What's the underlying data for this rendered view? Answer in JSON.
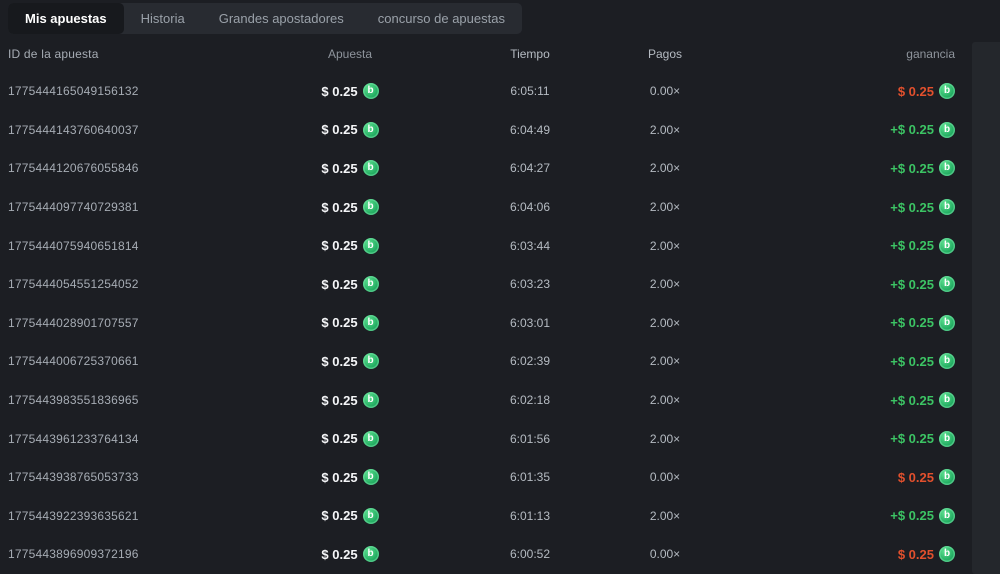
{
  "tabs": {
    "items": [
      {
        "label": "Mis apuestas",
        "active": true
      },
      {
        "label": "Historia",
        "active": false
      },
      {
        "label": "Grandes apostadores",
        "active": false
      },
      {
        "label": "concurso de apuestas",
        "active": false
      }
    ]
  },
  "table": {
    "headers": {
      "id": "ID de la apuesta",
      "bet": "Apuesta",
      "time": "Tiempo",
      "payout": "Pagos",
      "profit": "ganancia"
    },
    "rows": [
      {
        "id": "1775444165049156132",
        "bet": "$ 0.25",
        "time": "6:05:11",
        "payout": "0.00×",
        "profit": "$ 0.25",
        "result": "loss"
      },
      {
        "id": "1775444143760640037",
        "bet": "$ 0.25",
        "time": "6:04:49",
        "payout": "2.00×",
        "profit": "+$ 0.25",
        "result": "win"
      },
      {
        "id": "1775444120676055846",
        "bet": "$ 0.25",
        "time": "6:04:27",
        "payout": "2.00×",
        "profit": "+$ 0.25",
        "result": "win"
      },
      {
        "id": "1775444097740729381",
        "bet": "$ 0.25",
        "time": "6:04:06",
        "payout": "2.00×",
        "profit": "+$ 0.25",
        "result": "win"
      },
      {
        "id": "1775444075940651814",
        "bet": "$ 0.25",
        "time": "6:03:44",
        "payout": "2.00×",
        "profit": "+$ 0.25",
        "result": "win"
      },
      {
        "id": "1775444054551254052",
        "bet": "$ 0.25",
        "time": "6:03:23",
        "payout": "2.00×",
        "profit": "+$ 0.25",
        "result": "win"
      },
      {
        "id": "1775444028901707557",
        "bet": "$ 0.25",
        "time": "6:03:01",
        "payout": "2.00×",
        "profit": "+$ 0.25",
        "result": "win"
      },
      {
        "id": "1775444006725370661",
        "bet": "$ 0.25",
        "time": "6:02:39",
        "payout": "2.00×",
        "profit": "+$ 0.25",
        "result": "win"
      },
      {
        "id": "1775443983551836965",
        "bet": "$ 0.25",
        "time": "6:02:18",
        "payout": "2.00×",
        "profit": "+$ 0.25",
        "result": "win"
      },
      {
        "id": "1775443961233764134",
        "bet": "$ 0.25",
        "time": "6:01:56",
        "payout": "2.00×",
        "profit": "+$ 0.25",
        "result": "win"
      },
      {
        "id": "1775443938765053733",
        "bet": "$ 0.25",
        "time": "6:01:35",
        "payout": "0.00×",
        "profit": "$ 0.25",
        "result": "loss"
      },
      {
        "id": "1775443922393635621",
        "bet": "$ 0.25",
        "time": "6:01:13",
        "payout": "2.00×",
        "profit": "+$ 0.25",
        "result": "win"
      },
      {
        "id": "1775443896909372196",
        "bet": "$ 0.25",
        "time": "6:00:52",
        "payout": "0.00×",
        "profit": "$ 0.25",
        "result": "loss"
      }
    ]
  },
  "icons": {
    "coin_glyph": "b"
  },
  "colors": {
    "win": "#3cc464",
    "loss": "#e2502d",
    "coin_green": "#23ad62"
  }
}
